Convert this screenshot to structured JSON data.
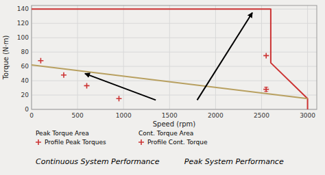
{
  "chart_data": {
    "type": "line",
    "xlabel": "Speed (rpm)",
    "ylabel": "Torque (N·m)",
    "xlim": [
      0,
      3100
    ],
    "ylim": [
      0,
      145
    ],
    "xticks": [
      0,
      500,
      1000,
      1500,
      2000,
      2500,
      3000
    ],
    "yticks": [
      0,
      20,
      40,
      60,
      80,
      100,
      120,
      140
    ],
    "grid": true,
    "bg_color": "#f0efed",
    "grid_color": "#d8d8d8",
    "series": [
      {
        "type": "line",
        "color": "#cc3333",
        "x": [
          0,
          2600,
          2600,
          3000,
          3000
        ],
        "values": [
          140,
          140,
          65,
          15,
          0
        ]
      },
      {
        "type": "line",
        "color": "#b8a060",
        "x": [
          0,
          3000
        ],
        "values": [
          62,
          15
        ]
      },
      {
        "type": "scatter",
        "marker": "plus",
        "color": "#cc3333",
        "x": [
          100,
          350,
          600,
          950,
          2550
        ],
        "values": [
          68,
          48,
          33,
          15,
          75
        ]
      },
      {
        "type": "scatter",
        "marker": "plus",
        "color": "#cc3333",
        "x": [
          2550
        ],
        "values": [
          28
        ],
        "errors": [
          3
        ]
      }
    ],
    "arrows": [
      {
        "color": "#000000",
        "x": [
          1350,
          580
        ],
        "y": [
          13,
          50
        ]
      },
      {
        "color": "#000000",
        "x": [
          1800,
          2400
        ],
        "y": [
          13,
          135
        ]
      }
    ],
    "legend_blocks": [
      {
        "title": "Peak Torque Area",
        "label": "Profile Peak Torques",
        "marker": "plus",
        "color": "#cc3333"
      },
      {
        "title": "Cont. Torque Area",
        "label": "Profile Cont. Torque",
        "marker": "plus",
        "color": "#cc3333"
      }
    ],
    "captions": [
      "Continuous System Performance",
      "Peak System Performance"
    ]
  }
}
